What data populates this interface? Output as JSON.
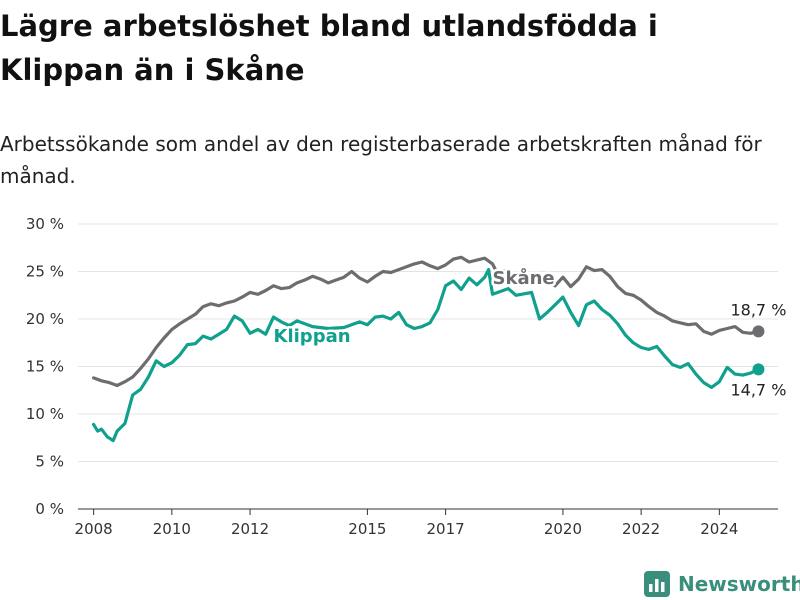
{
  "title": "Lägre arbetslöshet bland utlandsfödda i Klippan än i Skåne",
  "subtitle": "Arbetssökande som andel av den registerbaserade arbetskraften månad för månad.",
  "brand": {
    "name": "Newsworthy",
    "icon": "newsworthy-logo-icon"
  },
  "colors": {
    "skane": "#6d6c70",
    "klippan": "#0fa08e",
    "grid": "#e4e4e4",
    "axis": "#333333"
  },
  "chart_data": {
    "type": "line",
    "title": "Lägre arbetslöshet bland utlandsfödda i Klippan än i Skåne",
    "xlabel": "",
    "ylabel": "",
    "xlim": [
      2007.6,
      2025.5
    ],
    "ylim": [
      0,
      30
    ],
    "grid": true,
    "x_ticks": [
      {
        "value": 2008,
        "label": "2008"
      },
      {
        "value": 2010,
        "label": "2010"
      },
      {
        "value": 2012,
        "label": "2012"
      },
      {
        "value": 2015,
        "label": "2015"
      },
      {
        "value": 2017,
        "label": "2017"
      },
      {
        "value": 2020,
        "label": "2020"
      },
      {
        "value": 2022,
        "label": "2022"
      },
      {
        "value": 2024,
        "label": "2024"
      }
    ],
    "y_ticks": [
      {
        "value": 0,
        "label": "0 %"
      },
      {
        "value": 5,
        "label": "5 %"
      },
      {
        "value": 10,
        "label": "10 %"
      },
      {
        "value": 15,
        "label": "15 %"
      },
      {
        "value": 20,
        "label": "20 %"
      },
      {
        "value": 25,
        "label": "25 %"
      },
      {
        "value": 30,
        "label": "30 %"
      }
    ],
    "series": [
      {
        "name": "Skåne",
        "color": "#6d6c70",
        "end_label": "18,7 %",
        "points": [
          [
            2008.0,
            13.8
          ],
          [
            2008.2,
            13.5
          ],
          [
            2008.4,
            13.3
          ],
          [
            2008.6,
            13.0
          ],
          [
            2008.8,
            13.4
          ],
          [
            2009.0,
            13.9
          ],
          [
            2009.2,
            14.8
          ],
          [
            2009.4,
            15.8
          ],
          [
            2009.6,
            17.0
          ],
          [
            2009.8,
            18.0
          ],
          [
            2010.0,
            18.9
          ],
          [
            2010.2,
            19.5
          ],
          [
            2010.4,
            20.0
          ],
          [
            2010.6,
            20.5
          ],
          [
            2010.8,
            21.3
          ],
          [
            2011.0,
            21.6
          ],
          [
            2011.2,
            21.4
          ],
          [
            2011.4,
            21.7
          ],
          [
            2011.6,
            21.9
          ],
          [
            2011.8,
            22.3
          ],
          [
            2012.0,
            22.8
          ],
          [
            2012.2,
            22.6
          ],
          [
            2012.4,
            23.0
          ],
          [
            2012.6,
            23.5
          ],
          [
            2012.8,
            23.2
          ],
          [
            2013.0,
            23.3
          ],
          [
            2013.2,
            23.8
          ],
          [
            2013.4,
            24.1
          ],
          [
            2013.6,
            24.5
          ],
          [
            2013.8,
            24.2
          ],
          [
            2014.0,
            23.8
          ],
          [
            2014.2,
            24.1
          ],
          [
            2014.4,
            24.4
          ],
          [
            2014.6,
            25.0
          ],
          [
            2014.8,
            24.3
          ],
          [
            2015.0,
            23.9
          ],
          [
            2015.2,
            24.5
          ],
          [
            2015.4,
            25.0
          ],
          [
            2015.6,
            24.9
          ],
          [
            2015.8,
            25.2
          ],
          [
            2016.0,
            25.5
          ],
          [
            2016.2,
            25.8
          ],
          [
            2016.4,
            26.0
          ],
          [
            2016.6,
            25.6
          ],
          [
            2016.8,
            25.3
          ],
          [
            2017.0,
            25.7
          ],
          [
            2017.2,
            26.3
          ],
          [
            2017.4,
            26.5
          ],
          [
            2017.6,
            26.0
          ],
          [
            2017.8,
            26.2
          ],
          [
            2018.0,
            26.4
          ],
          [
            2018.2,
            25.8
          ],
          [
            2018.3,
            25.0
          ],
          [
            2018.5,
            25.1
          ],
          [
            2018.7,
            24.7
          ],
          [
            2018.9,
            24.2
          ],
          [
            2019.3,
            23.7
          ],
          [
            2019.6,
            24.1
          ],
          [
            2019.8,
            23.5
          ],
          [
            2020.0,
            24.4
          ],
          [
            2020.2,
            23.4
          ],
          [
            2020.4,
            24.2
          ],
          [
            2020.6,
            25.5
          ],
          [
            2020.8,
            25.1
          ],
          [
            2021.0,
            25.2
          ],
          [
            2021.2,
            24.5
          ],
          [
            2021.4,
            23.4
          ],
          [
            2021.6,
            22.7
          ],
          [
            2021.8,
            22.5
          ],
          [
            2022.0,
            22.0
          ],
          [
            2022.2,
            21.3
          ],
          [
            2022.4,
            20.7
          ],
          [
            2022.6,
            20.3
          ],
          [
            2022.8,
            19.8
          ],
          [
            2023.0,
            19.6
          ],
          [
            2023.2,
            19.4
          ],
          [
            2023.4,
            19.5
          ],
          [
            2023.6,
            18.7
          ],
          [
            2023.8,
            18.4
          ],
          [
            2024.0,
            18.8
          ],
          [
            2024.2,
            19.0
          ],
          [
            2024.4,
            19.2
          ],
          [
            2024.6,
            18.6
          ],
          [
            2024.8,
            18.5
          ],
          [
            2025.0,
            18.7
          ]
        ]
      },
      {
        "name": "Klippan",
        "color": "#0fa08e",
        "end_label": "14,7 %",
        "points": [
          [
            2008.0,
            8.9
          ],
          [
            2008.1,
            8.2
          ],
          [
            2008.2,
            8.4
          ],
          [
            2008.35,
            7.6
          ],
          [
            2008.5,
            7.2
          ],
          [
            2008.6,
            8.2
          ],
          [
            2008.8,
            9.0
          ],
          [
            2009.0,
            12.0
          ],
          [
            2009.2,
            12.6
          ],
          [
            2009.4,
            13.9
          ],
          [
            2009.6,
            15.6
          ],
          [
            2009.8,
            15.0
          ],
          [
            2010.0,
            15.4
          ],
          [
            2010.2,
            16.2
          ],
          [
            2010.4,
            17.3
          ],
          [
            2010.6,
            17.4
          ],
          [
            2010.8,
            18.2
          ],
          [
            2011.0,
            17.9
          ],
          [
            2011.2,
            18.4
          ],
          [
            2011.4,
            18.9
          ],
          [
            2011.6,
            20.3
          ],
          [
            2011.8,
            19.8
          ],
          [
            2012.0,
            18.5
          ],
          [
            2012.2,
            18.9
          ],
          [
            2012.4,
            18.4
          ],
          [
            2012.6,
            20.2
          ],
          [
            2012.8,
            19.7
          ],
          [
            2013.0,
            19.3
          ],
          [
            2013.2,
            19.8
          ],
          [
            2013.6,
            19.2
          ],
          [
            2014.0,
            19.0
          ],
          [
            2014.4,
            19.1
          ],
          [
            2014.8,
            19.7
          ],
          [
            2015.0,
            19.4
          ],
          [
            2015.2,
            20.2
          ],
          [
            2015.4,
            20.3
          ],
          [
            2015.6,
            20.0
          ],
          [
            2015.8,
            20.7
          ],
          [
            2016.0,
            19.4
          ],
          [
            2016.2,
            19.0
          ],
          [
            2016.4,
            19.2
          ],
          [
            2016.6,
            19.6
          ],
          [
            2016.8,
            21.0
          ],
          [
            2017.0,
            23.5
          ],
          [
            2017.2,
            24.0
          ],
          [
            2017.4,
            23.1
          ],
          [
            2017.6,
            24.3
          ],
          [
            2017.8,
            23.6
          ],
          [
            2018.0,
            24.4
          ],
          [
            2018.1,
            25.2
          ],
          [
            2018.2,
            22.6
          ],
          [
            2018.4,
            22.9
          ],
          [
            2018.6,
            23.2
          ],
          [
            2018.8,
            22.5
          ],
          [
            2019.2,
            22.8
          ],
          [
            2019.4,
            20.0
          ],
          [
            2019.6,
            20.7
          ],
          [
            2019.8,
            21.5
          ],
          [
            2020.0,
            22.3
          ],
          [
            2020.2,
            20.7
          ],
          [
            2020.4,
            19.3
          ],
          [
            2020.6,
            21.5
          ],
          [
            2020.8,
            21.9
          ],
          [
            2021.0,
            21.0
          ],
          [
            2021.2,
            20.4
          ],
          [
            2021.4,
            19.5
          ],
          [
            2021.6,
            18.3
          ],
          [
            2021.8,
            17.5
          ],
          [
            2022.0,
            17.0
          ],
          [
            2022.2,
            16.8
          ],
          [
            2022.4,
            17.1
          ],
          [
            2022.6,
            16.1
          ],
          [
            2022.8,
            15.2
          ],
          [
            2023.0,
            14.9
          ],
          [
            2023.2,
            15.3
          ],
          [
            2023.4,
            14.2
          ],
          [
            2023.6,
            13.3
          ],
          [
            2023.8,
            12.8
          ],
          [
            2024.0,
            13.4
          ],
          [
            2024.2,
            14.9
          ],
          [
            2024.4,
            14.2
          ],
          [
            2024.6,
            14.1
          ],
          [
            2024.8,
            14.3
          ],
          [
            2025.0,
            14.7
          ]
        ]
      }
    ],
    "annotations": [
      {
        "text": "Skåne",
        "series": "Skåne"
      },
      {
        "text": "Klippan",
        "series": "Klippan"
      }
    ]
  }
}
